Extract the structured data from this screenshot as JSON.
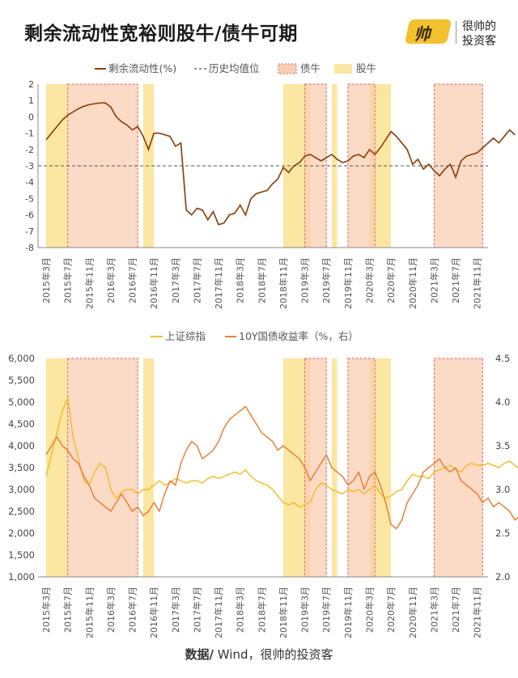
{
  "page": {
    "title": "剩余流动性宽裕则股牛/债牛可期"
  },
  "logo": {
    "badge": "帅",
    "line1": "很帅的",
    "line2": "投资客"
  },
  "source": {
    "label": "数据/",
    "text": " Wind，很帅的投资客"
  },
  "colors": {
    "liquidity": "#8b4513",
    "shanghai": "#f5bd2a",
    "bond": "#e8803a",
    "bond_bull_fill": "#f9cdb3",
    "bond_bull_border": "#e06060",
    "stock_bull_fill": "#fbe6a2",
    "avg_line": "#555555"
  },
  "chart_data": [
    {
      "type": "line",
      "legend": [
        "剩余流动性(%)",
        "历史均值位",
        "债牛",
        "股牛"
      ],
      "ylim": [
        -8,
        2
      ],
      "yticks": [
        "2",
        "1",
        "0",
        "-1",
        "-2",
        "-3",
        "-4",
        "-5",
        "-6",
        "-7",
        "-8"
      ],
      "xticks": [
        "2015年3月",
        "2015年7月",
        "2015年11月",
        "2016年3月",
        "2016年7月",
        "2016年11月",
        "2017年3月",
        "2017年7月",
        "2017年11月",
        "2018年3月",
        "2018年7月",
        "2018年11月",
        "2019年3月",
        "2019年7月",
        "2019年11月",
        "2020年3月",
        "2020年7月",
        "2020年11月",
        "2021年3月",
        "2021年7月",
        "2021年11月"
      ],
      "historical_average": -3.0,
      "series": [
        {
          "name": "剩余流动性(%)",
          "start": "2015年3月",
          "values": [
            -1.4,
            -1.0,
            -0.6,
            -0.2,
            0.1,
            0.3,
            0.5,
            0.65,
            0.75,
            0.8,
            0.85,
            0.85,
            0.6,
            0.0,
            -0.3,
            -0.5,
            -0.8,
            -0.6,
            -1.2,
            -2.0,
            -1.0,
            -1.0,
            -1.1,
            -1.2,
            -1.8,
            -1.6,
            -5.7,
            -6.0,
            -5.6,
            -5.7,
            -6.3,
            -5.8,
            -6.6,
            -6.5,
            -6.0,
            -5.9,
            -5.4,
            -6.0,
            -5.0,
            -4.7,
            -4.6,
            -4.5,
            -4.1,
            -3.8,
            -3.1,
            -3.4,
            -3.0,
            -2.8,
            -2.4,
            -2.3,
            -2.5,
            -2.7,
            -2.5,
            -2.3,
            -2.6,
            -2.8,
            -2.7,
            -2.4,
            -2.3,
            -2.5,
            -2.0,
            -2.3,
            -1.9,
            -1.4,
            -0.9,
            -1.2,
            -1.6,
            -2.0,
            -2.9,
            -2.6,
            -3.2,
            -2.9,
            -3.3,
            -3.6,
            -3.2,
            -2.9,
            -3.7,
            -2.7,
            -2.4,
            -2.3,
            -2.2,
            -1.9,
            -1.6,
            -1.3,
            -1.6,
            -1.2,
            -0.8,
            -1.1
          ]
        }
      ]
    },
    {
      "type": "line",
      "legend": [
        "上证综指",
        "10Y国债收益率（%，右）"
      ],
      "ylim": [
        1000,
        6000
      ],
      "y2lim": [
        2.0,
        4.5
      ],
      "yticks": [
        "6,000",
        "5,500",
        "5,000",
        "4,500",
        "4,000",
        "3,500",
        "3,000",
        "2,500",
        "2,000",
        "1,500",
        "1,000"
      ],
      "y2ticks": [
        "4.5",
        "4.0",
        "3.5",
        "3.0",
        "2.5",
        "2.0"
      ],
      "xticks": [
        "2015年3月",
        "2015年7月",
        "2015年11月",
        "2016年3月",
        "2016年7月",
        "2016年11月",
        "2017年3月",
        "2017年7月",
        "2017年11月",
        "2018年3月",
        "2018年7月",
        "2018年11月",
        "2019年3月",
        "2019年7月",
        "2019年11月",
        "2020年3月",
        "2020年7月",
        "2020年11月",
        "2021年3月",
        "2021年7月",
        "2021年11月"
      ],
      "series": [
        {
          "name": "上证综指",
          "axis": "left",
          "start": "2015年3月",
          "values": [
            3300,
            3800,
            4300,
            4800,
            5100,
            4200,
            3700,
            3200,
            3100,
            3400,
            3600,
            3500,
            3000,
            2800,
            2950,
            3000,
            3000,
            2900,
            3000,
            3000,
            3100,
            3200,
            3100,
            3150,
            3250,
            3200,
            3150,
            3200,
            3200,
            3150,
            3250,
            3300,
            3250,
            3300,
            3350,
            3400,
            3350,
            3450,
            3300,
            3200,
            3150,
            3100,
            3000,
            2850,
            2700,
            2650,
            2700,
            2600,
            2650,
            2700,
            3000,
            3150,
            3100,
            3000,
            2950,
            2900,
            3000,
            2950,
            3000,
            2900,
            3000,
            3100,
            2900,
            2800,
            2850,
            2950,
            3000,
            3200,
            3350,
            3300,
            3300,
            3250,
            3400,
            3450,
            3500,
            3550,
            3450,
            3400,
            3550,
            3600,
            3550,
            3550,
            3600,
            3550,
            3500,
            3600,
            3650,
            3550,
            3450
          ]
        },
        {
          "name": "10Y国债收益率（%，右）",
          "axis": "right",
          "start": "2015年3月",
          "values": [
            3.4,
            3.5,
            3.6,
            3.5,
            3.45,
            3.35,
            3.3,
            3.15,
            3.05,
            2.9,
            2.85,
            2.8,
            2.75,
            2.85,
            2.95,
            2.85,
            2.75,
            2.8,
            2.7,
            2.75,
            2.85,
            2.75,
            2.95,
            3.1,
            3.05,
            3.3,
            3.45,
            3.55,
            3.5,
            3.35,
            3.4,
            3.45,
            3.55,
            3.7,
            3.8,
            3.85,
            3.9,
            3.95,
            3.85,
            3.75,
            3.65,
            3.6,
            3.55,
            3.45,
            3.5,
            3.45,
            3.4,
            3.35,
            3.25,
            3.1,
            3.2,
            3.3,
            3.4,
            3.25,
            3.2,
            3.15,
            3.05,
            3.1,
            3.2,
            3.0,
            3.15,
            3.2,
            3.05,
            2.85,
            2.6,
            2.55,
            2.65,
            2.85,
            2.95,
            3.05,
            3.2,
            3.25,
            3.3,
            3.35,
            3.25,
            3.2,
            3.25,
            3.1,
            3.05,
            3.0,
            2.95,
            2.85,
            2.9,
            2.8,
            2.85,
            2.8,
            2.75,
            2.65,
            2.7
          ]
        }
      ]
    }
  ],
  "bands": {
    "stock_bull": [
      [
        "2015年3月",
        "2015年7月"
      ],
      [
        "2016年9月",
        "2016年11月"
      ],
      [
        "2018年11月",
        "2019年4月"
      ],
      [
        "2019年8月",
        "2019年9月"
      ],
      [
        "2020年3月",
        "2020年7月"
      ]
    ],
    "bond_bull": [
      [
        "2015年7月",
        "2016年8月"
      ],
      [
        "2019年3月",
        "2019年7月"
      ],
      [
        "2019年11月",
        "2020年4月"
      ],
      [
        "2021年3月",
        "2021年12月"
      ]
    ]
  }
}
